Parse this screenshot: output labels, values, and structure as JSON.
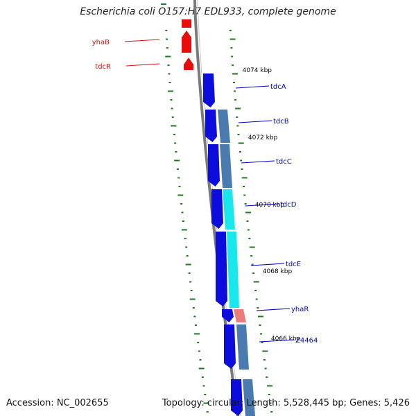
{
  "title": "Escherichia coli O157:H7 EDL933, complete genome",
  "footer": {
    "accession": "Accession: NC_002655",
    "summary": "Topology: circular; Length: 5,528,445 bp; Genes: 5,426"
  },
  "colors": {
    "backbone": "#7a7a7a",
    "tick": "#1c7a1c",
    "forward_gene": "#0c0cdc",
    "reverse_gene": "#e80c0c",
    "label_forward": "#0000c8",
    "label_reverse": "#d01010",
    "cog_steel": "#4a7aae",
    "cog_cyan": "#18e8ec",
    "cog_pink": "#ec7c7c"
  },
  "ticks": [
    {
      "label": "4074 kbp"
    },
    {
      "label": "4072 kbp"
    },
    {
      "label": "4070 kbp"
    },
    {
      "label": "4068 kbp"
    },
    {
      "label": "4066 kbp"
    }
  ],
  "genes": [
    {
      "name": "yhaB",
      "strand": "reverse"
    },
    {
      "name": "tdcR",
      "strand": "reverse"
    },
    {
      "name": "tdcA",
      "strand": "forward"
    },
    {
      "name": "tdcB",
      "strand": "forward",
      "category_color": "cog_steel"
    },
    {
      "name": "tdcC",
      "strand": "forward",
      "category_color": "cog_steel"
    },
    {
      "name": "tdcD",
      "strand": "forward",
      "category_color": "cog_cyan"
    },
    {
      "name": "tdcE",
      "strand": "forward",
      "category_color": "cog_cyan"
    },
    {
      "name": "yhaR",
      "strand": "forward",
      "category_color": "cog_pink"
    },
    {
      "name": "Z4464",
      "strand": "forward",
      "category_color": "cog_steel"
    },
    {
      "name": "",
      "strand": "forward",
      "category_color": "cog_steel"
    }
  ]
}
